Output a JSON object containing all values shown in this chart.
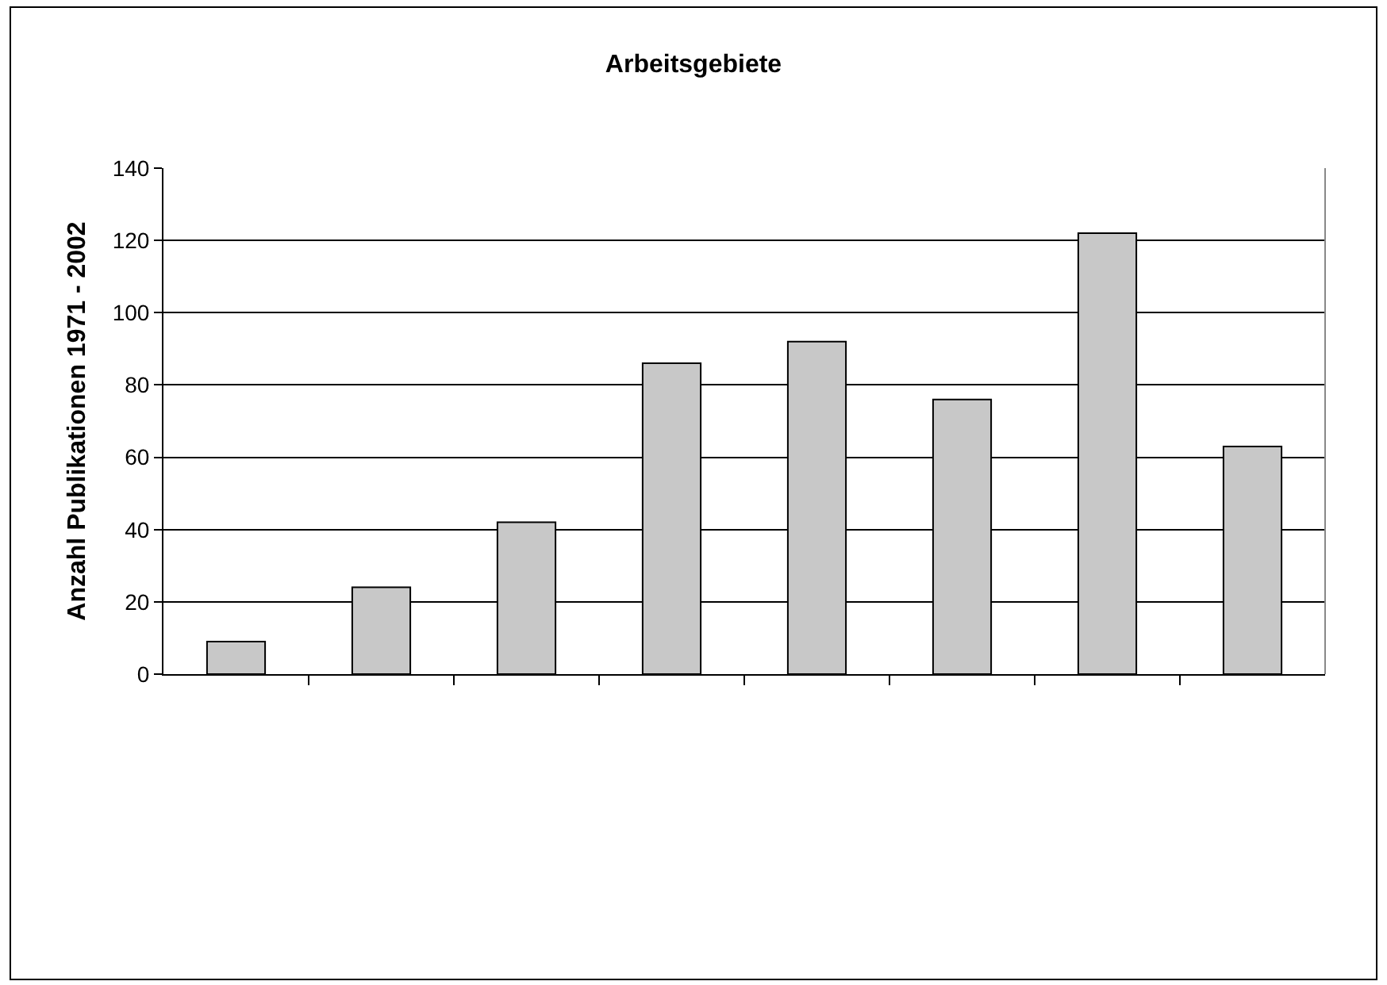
{
  "chart_data": {
    "type": "bar",
    "title": "Arbeitsgebiete",
    "ylabel": "Anzahl Publikationen 1971 - 2002",
    "categories": [
      null,
      null,
      null,
      null,
      null,
      null,
      null,
      null
    ],
    "values": [
      9,
      24,
      42,
      86,
      92,
      76,
      122,
      63
    ],
    "color": "#c8c8c8",
    "ylim": [
      0,
      140
    ],
    "yticks": [
      0,
      20,
      40,
      60,
      80,
      100,
      120,
      140
    ],
    "grid": "y",
    "tick_labels": "y",
    "legend": false
  }
}
